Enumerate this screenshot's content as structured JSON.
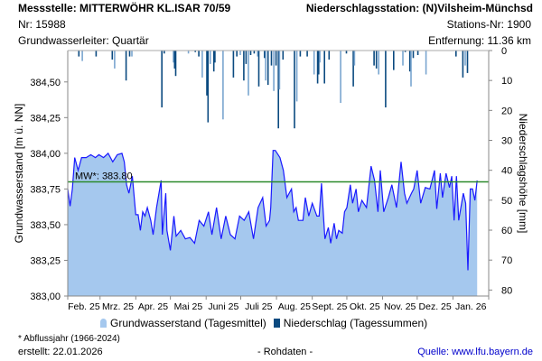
{
  "header": {
    "station_title": "Messstelle: MITTERWÖHR KL.ISAR 70/59",
    "nr": "Nr: 15988",
    "aquifer": "Grundwasserleiter: Quartär",
    "precip_station": "Niederschlagsstation: (N)Vilsheim-Münchsd",
    "precip_station_nr": "Stations-Nr: 1900",
    "distance": "Entfernung: 11.36 km"
  },
  "legend": {
    "groundwater": "Grundwasserstand (Tagesmittel)",
    "precip": "Niederschlag (Tagessummen)"
  },
  "footer": {
    "note": "* Abflussjahr (1966-2024)",
    "created": "erstellt:  22.01.2026",
    "raw": "- Rohdaten -",
    "source": "Quelle: www.lfu.bayern.de"
  },
  "colors": {
    "fill": "#a5c8ee",
    "line": "#1a1aff",
    "mw": "#2a8a2a",
    "precip": "#0b4a80",
    "precip_light": "#7aa6d0",
    "link": "#0000cc"
  },
  "chart_data": {
    "type": "area",
    "x_unit": "days since 01.02.2025",
    "ylabel": "Grundwasserstand [m ü. NN]",
    "y2label": "Niederschlagshöhe [mm]",
    "ylim": [
      383.0,
      384.72
    ],
    "y2lim": [
      0,
      82
    ],
    "xlim": [
      0,
      365
    ],
    "yticks": [
      "383,00",
      "383,25",
      "383,50",
      "383,75",
      "384,00",
      "384,25",
      "384,50"
    ],
    "ytick_values": [
      383.0,
      383.25,
      383.5,
      383.75,
      384.0,
      384.25,
      384.5
    ],
    "y2ticks": [
      "0",
      "10",
      "20",
      "30",
      "40",
      "50",
      "60",
      "70",
      "80"
    ],
    "month_starts": [
      0,
      28,
      59,
      89,
      120,
      150,
      181,
      212,
      242,
      273,
      303,
      334,
      365
    ],
    "month_labels": [
      "Feb. 25",
      "Mrz. 25",
      "Apr. 25",
      "Mai 25",
      "Juni 25",
      "Juli 25",
      "Aug. 25",
      "Sept. 25",
      "Okt. 25",
      "Nov. 25",
      "Dez. 25",
      "Jan. 26"
    ],
    "mean": {
      "label": "MW*: 383.80",
      "value": 383.8
    },
    "groundwater": [
      [
        0,
        383.75
      ],
      [
        2,
        383.63
      ],
      [
        4,
        383.75
      ],
      [
        6,
        383.97
      ],
      [
        9,
        383.88
      ],
      [
        12,
        383.97
      ],
      [
        16,
        383.97
      ],
      [
        20,
        383.99
      ],
      [
        24,
        383.97
      ],
      [
        27,
        383.99
      ],
      [
        31,
        383.97
      ],
      [
        35,
        384.0
      ],
      [
        39,
        383.94
      ],
      [
        43,
        383.99
      ],
      [
        47,
        384.0
      ],
      [
        49,
        383.94
      ],
      [
        51,
        383.78
      ],
      [
        53,
        383.72
      ],
      [
        56,
        383.84
      ],
      [
        59,
        383.57
      ],
      [
        61,
        383.57
      ],
      [
        63,
        383.46
      ],
      [
        65,
        383.59
      ],
      [
        67,
        383.56
      ],
      [
        69,
        383.62
      ],
      [
        72,
        383.53
      ],
      [
        74,
        383.43
      ],
      [
        77,
        383.62
      ],
      [
        81,
        383.81
      ],
      [
        82,
        383.43
      ],
      [
        85,
        383.72
      ],
      [
        86,
        383.46
      ],
      [
        89,
        383.32
      ],
      [
        92,
        383.56
      ],
      [
        94,
        383.42
      ],
      [
        98,
        383.46
      ],
      [
        102,
        383.4
      ],
      [
        106,
        383.41
      ],
      [
        110,
        383.37
      ],
      [
        114,
        383.53
      ],
      [
        118,
        383.49
      ],
      [
        122,
        383.59
      ],
      [
        125,
        383.43
      ],
      [
        129,
        383.62
      ],
      [
        133,
        383.4
      ],
      [
        137,
        383.56
      ],
      [
        141,
        383.43
      ],
      [
        145,
        383.4
      ],
      [
        149,
        383.56
      ],
      [
        153,
        383.53
      ],
      [
        157,
        383.59
      ],
      [
        161,
        383.4
      ],
      [
        165,
        383.62
      ],
      [
        169,
        383.69
      ],
      [
        172,
        383.49
      ],
      [
        175,
        383.53
      ],
      [
        176,
        383.62
      ],
      [
        178,
        384.02
      ],
      [
        180,
        384.02
      ],
      [
        184,
        383.97
      ],
      [
        187,
        383.88
      ],
      [
        190,
        383.69
      ],
      [
        192,
        383.72
      ],
      [
        194,
        383.75
      ],
      [
        196,
        383.59
      ],
      [
        198,
        383.62
      ],
      [
        200,
        383.53
      ],
      [
        204,
        383.53
      ],
      [
        206,
        383.69
      ],
      [
        209,
        383.56
      ],
      [
        212,
        383.65
      ],
      [
        216,
        383.56
      ],
      [
        218,
        383.56
      ],
      [
        220,
        383.79
      ],
      [
        222,
        383.53
      ],
      [
        223,
        383.4
      ],
      [
        226,
        383.48
      ],
      [
        228,
        383.37
      ],
      [
        231,
        383.51
      ],
      [
        233,
        383.4
      ],
      [
        235,
        383.46
      ],
      [
        238,
        383.44
      ],
      [
        240,
        383.59
      ],
      [
        242,
        383.62
      ],
      [
        245,
        383.78
      ],
      [
        247,
        383.65
      ],
      [
        250,
        383.75
      ],
      [
        252,
        383.59
      ],
      [
        255,
        383.67
      ],
      [
        259,
        383.62
      ],
      [
        263,
        383.91
      ],
      [
        266,
        383.81
      ],
      [
        269,
        383.59
      ],
      [
        271,
        383.88
      ],
      [
        274,
        383.59
      ],
      [
        278,
        383.69
      ],
      [
        281,
        383.78
      ],
      [
        285,
        383.62
      ],
      [
        289,
        383.94
      ],
      [
        292,
        383.72
      ],
      [
        294,
        383.65
      ],
      [
        298,
        383.72
      ],
      [
        300,
        383.75
      ],
      [
        303,
        383.88
      ],
      [
        306,
        383.65
      ],
      [
        310,
        383.76
      ],
      [
        314,
        383.75
      ],
      [
        318,
        383.88
      ],
      [
        320,
        383.61
      ],
      [
        323,
        383.86
      ],
      [
        325,
        383.69
      ],
      [
        328,
        383.86
      ],
      [
        331,
        383.76
      ],
      [
        333,
        383.84
      ],
      [
        335,
        383.53
      ],
      [
        337,
        383.84
      ],
      [
        339,
        383.53
      ],
      [
        343,
        383.72
      ],
      [
        345,
        383.65
      ],
      [
        347,
        383.18
      ],
      [
        349,
        383.75
      ],
      [
        351,
        383.75
      ],
      [
        353,
        383.67
      ],
      [
        355,
        383.81
      ]
    ],
    "precipitation": [
      [
        9,
        2
      ],
      [
        12,
        3.5
      ],
      [
        24,
        2
      ],
      [
        38,
        3
      ],
      [
        40,
        6
      ],
      [
        50,
        10
      ],
      [
        53,
        2
      ],
      [
        55,
        2
      ],
      [
        81,
        19
      ],
      [
        83,
        1
      ],
      [
        91,
        4
      ],
      [
        92,
        6
      ],
      [
        93,
        8.5
      ],
      [
        104,
        1
      ],
      [
        110,
        0.5
      ],
      [
        113,
        2
      ],
      [
        116,
        9
      ],
      [
        120,
        15
      ],
      [
        121,
        24
      ],
      [
        123,
        4.5
      ],
      [
        126,
        7
      ],
      [
        127,
        4
      ],
      [
        134,
        23
      ],
      [
        143,
        9
      ],
      [
        146,
        2
      ],
      [
        149,
        1.5
      ],
      [
        152,
        10
      ],
      [
        154,
        4.5
      ],
      [
        156,
        15
      ],
      [
        158,
        1.5
      ],
      [
        161,
        1
      ],
      [
        164,
        2
      ],
      [
        165,
        12
      ],
      [
        170,
        2.5
      ],
      [
        171,
        10
      ],
      [
        173,
        11.5
      ],
      [
        176,
        5
      ],
      [
        178,
        13.5
      ],
      [
        180,
        5
      ],
      [
        182,
        26
      ],
      [
        183,
        13
      ],
      [
        186,
        3
      ],
      [
        196,
        26
      ],
      [
        198,
        17
      ],
      [
        201,
        2
      ],
      [
        207,
        2
      ],
      [
        213,
        8
      ],
      [
        216,
        11
      ],
      [
        217,
        8
      ],
      [
        218,
        4
      ],
      [
        222,
        11
      ],
      [
        226,
        3
      ],
      [
        236,
        17.5
      ],
      [
        241,
        1
      ],
      [
        247,
        12
      ],
      [
        248,
        5
      ],
      [
        265,
        5
      ],
      [
        267,
        6
      ],
      [
        269,
        8
      ],
      [
        275,
        19
      ],
      [
        282,
        6.5
      ],
      [
        290,
        5
      ],
      [
        292,
        0.5
      ],
      [
        296,
        7
      ],
      [
        297,
        12
      ],
      [
        299,
        2.5
      ],
      [
        303,
        1.5
      ],
      [
        310,
        8
      ],
      [
        336,
        2
      ],
      [
        342,
        9
      ],
      [
        344,
        5
      ],
      [
        346,
        7.5
      ]
    ]
  }
}
